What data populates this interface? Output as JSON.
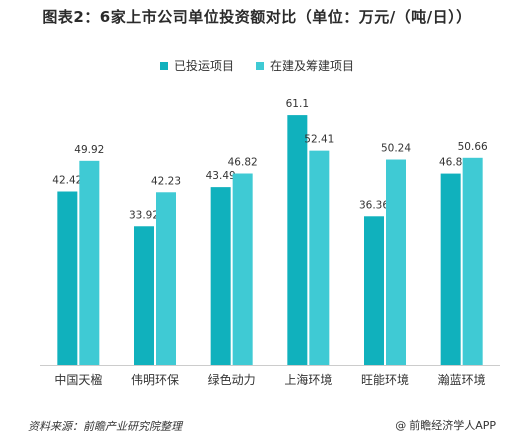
{
  "title": "图表2：6家上市公司单位投资额对比（单位：万元/（吨/日））",
  "footer": {
    "source": "资料来源：前瞻产业研究院整理",
    "credit_icon": "at-icon",
    "credit": "前瞻经济学人APP"
  },
  "colors": {
    "series_1": "#10b1bd",
    "series_2": "#3fcad4",
    "axis": "#cccccc"
  },
  "chart_data": {
    "type": "bar",
    "title": "图表2：6家上市公司单位投资额对比（单位：万元/（吨/日））",
    "xlabel": "",
    "ylabel": "",
    "categories": [
      "中国天楹",
      "伟明环保",
      "绿色动力",
      "上海环境",
      "旺能环境",
      "瀚蓝环境"
    ],
    "series": [
      {
        "name": "已投运项目",
        "values": [
          42.42,
          33.92,
          43.49,
          61.1,
          36.36,
          46.8
        ]
      },
      {
        "name": "在建及筹建项目",
        "values": [
          49.92,
          42.23,
          46.82,
          52.41,
          50.24,
          50.66
        ]
      }
    ],
    "value_labels": [
      [
        "42.42",
        "33.92",
        "43.49",
        "61.1",
        "36.36",
        "46.8"
      ],
      [
        "49.92",
        "42.23",
        "46.82",
        "52.41",
        "50.24",
        "50.66"
      ]
    ],
    "ylim": [
      0,
      70
    ],
    "grid": false,
    "legend_position": "top"
  }
}
